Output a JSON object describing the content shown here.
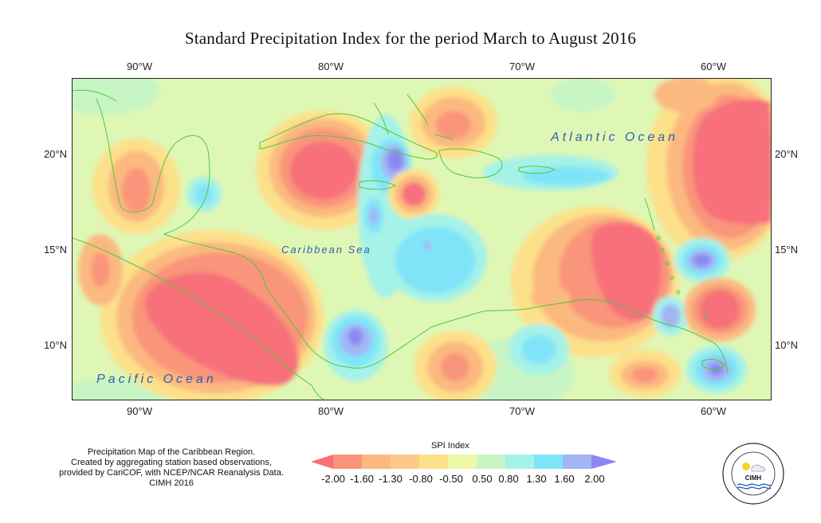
{
  "title": "Standard Precipitation Index for the period March to August 2016",
  "axes": {
    "lon_top": [
      "90°W",
      "80°W",
      "70°W",
      "60°W"
    ],
    "lon_bottom": [
      "90°W",
      "80°W",
      "70°W",
      "60°W"
    ],
    "lat_left": [
      "20°N",
      "15°N",
      "10°N"
    ],
    "lat_right": [
      "20°N",
      "15°N",
      "10°N"
    ]
  },
  "map_labels": {
    "atlantic": "Atlantic Ocean",
    "caribbean": "Caribbean Sea",
    "pacific": "Pacific Ocean"
  },
  "caption": {
    "line1": "Precipitation Map of the Caribbean Region.",
    "line2": "Created by aggregating station based observations,",
    "line3": "provided by CariCOF, with NCEP/NCAR Reanalysis Data.",
    "line4": "CIMH 2016"
  },
  "legend": {
    "title": "SPI Index",
    "labels": [
      "-2.00",
      "-1.60",
      "-1.30",
      "-0.80",
      "-0.50",
      "0.50",
      "0.80",
      "1.30",
      "1.60",
      "2.00"
    ],
    "colors": [
      "#f7707a",
      "#f9957a",
      "#fbb97f",
      "#fde08a",
      "#eef8a8",
      "#c8f5c4",
      "#a4f2e8",
      "#80e4f8",
      "#a3b5f5",
      "#8b88f0"
    ]
  },
  "logo": {
    "text": "CIMH",
    "ring_text": "Caribbean Institute for Meteorology and Hydrology"
  },
  "colors": {
    "land_outline": "#4ccb3c",
    "ocean_text": "#2f5fb0",
    "neutral": "#dff7b5"
  }
}
